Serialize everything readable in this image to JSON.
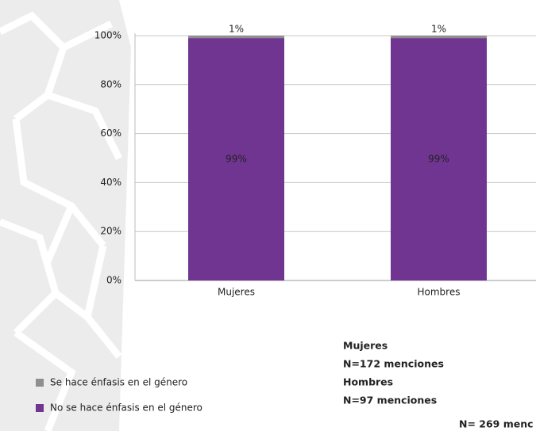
{
  "chart_data": {
    "type": "bar",
    "stacked": true,
    "categories": [
      "Mujeres",
      "Hombres"
    ],
    "series": [
      {
        "name": "No se hace énfasis en el género",
        "color": "#6f3590",
        "values": [
          99,
          99
        ],
        "value_labels": [
          "99%",
          "99%"
        ]
      },
      {
        "name": "Se hace énfasis en el género",
        "color": "#8f8f8f",
        "values": [
          1,
          1
        ],
        "value_labels": [
          "1%",
          "1%"
        ]
      }
    ],
    "ylim": [
      0,
      100
    ],
    "yticks": [
      {
        "value": 0,
        "label": "0%"
      },
      {
        "value": 20,
        "label": "20%"
      },
      {
        "value": 40,
        "label": "40%"
      },
      {
        "value": 60,
        "label": "60%"
      },
      {
        "value": 80,
        "label": "80%"
      },
      {
        "value": 100,
        "label": "100%"
      }
    ],
    "grid": true,
    "legend": "bottom-left",
    "annotations": [
      "Mujeres",
      "N=172 menciones",
      "Hombres",
      "N=97 menciones",
      "N= 269 menc"
    ]
  }
}
